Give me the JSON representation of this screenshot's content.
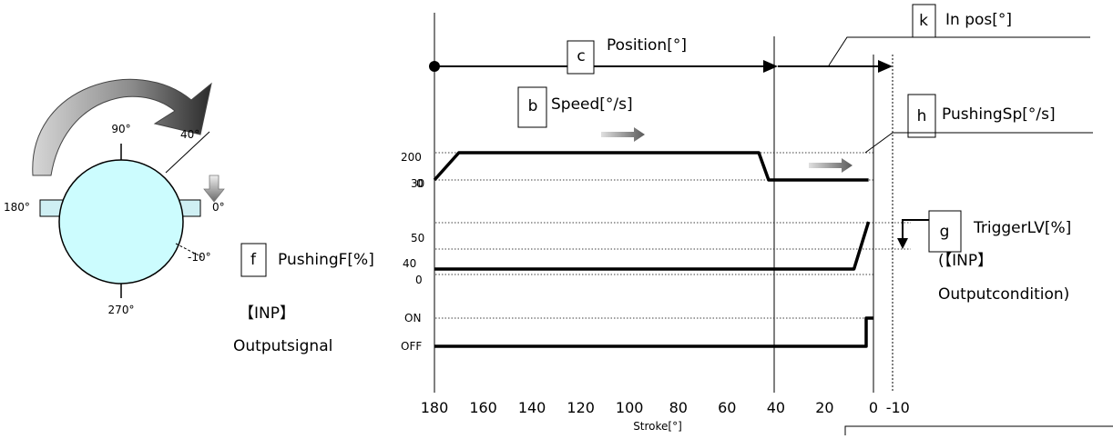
{
  "rotor": {
    "angle_top": "90°",
    "angle_40": "40°",
    "angle_left": "180°",
    "angle_right": "0°",
    "angle_minus10": "-10°",
    "angle_bottom": "270°"
  },
  "labels": {
    "position": {
      "letter": "c",
      "text": "Position[°]"
    },
    "speed": {
      "letter": "b",
      "text": "Speed[°/s]"
    },
    "inpos": {
      "letter": "k",
      "text": "In pos[°]"
    },
    "pushing_sp": {
      "letter": "h",
      "text": "PushingSp[°/s]"
    },
    "trigger_lv": {
      "letter": "g",
      "text": "TriggerLV[%]"
    },
    "inp_condition_1": "(【INP】",
    "inp_condition_2": "Outputcondition)",
    "pushing_f": {
      "letter": "f",
      "text": "PushingF[%]"
    },
    "inp_signal_1": "【INP】",
    "inp_signal_2": "Outputsignal"
  },
  "chart_data": {
    "type": "line",
    "xlabel": "Stroke[°]",
    "x_ticks": [
      "180",
      "160",
      "140",
      "120",
      "100",
      "80",
      "60",
      "40",
      "20",
      "0",
      "-10"
    ],
    "speed_axis_labels": [
      "200",
      "30",
      "0"
    ],
    "force_axis_labels": [
      "50",
      "40",
      "0"
    ],
    "signal_axis_labels": [
      "ON",
      "OFF"
    ],
    "series": [
      {
        "x": [
          180,
          170,
          47,
          43,
          5,
          2
        ],
        "y": [
          0,
          200,
          200,
          30,
          30,
          0
        ]
      },
      {
        "x": [
          180,
          8,
          2
        ],
        "y": [
          40,
          40,
          50
        ]
      },
      {
        "x": [
          180,
          4,
          3,
          3,
          0
        ],
        "y": [
          "OFF",
          "OFF",
          "OFF",
          "ON",
          "ON"
        ]
      }
    ]
  }
}
